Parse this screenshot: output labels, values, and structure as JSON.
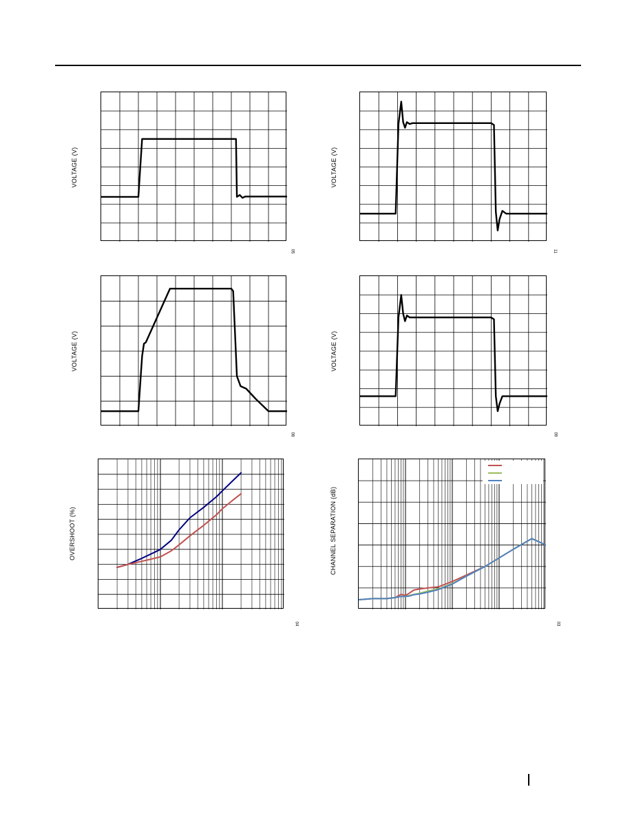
{
  "page": {
    "header_rule": true,
    "page_marker": true
  },
  "chart_data": [
    {
      "id": "top-left",
      "type": "line",
      "title": "",
      "xlabel": "",
      "ylabel": "VOLTAGE (V)",
      "figure_id": "05",
      "xlim": [
        0,
        10
      ],
      "ylim": [
        0,
        8
      ],
      "grid": true,
      "series": [
        {
          "color": "#000000",
          "x": [
            0,
            2.0,
            2.2,
            7.1,
            7.25,
            7.3,
            7.45,
            7.6,
            7.75,
            10
          ],
          "y": [
            2.4,
            2.4,
            5.5,
            5.5,
            5.5,
            2.4,
            2.5,
            2.35,
            2.42,
            2.42
          ]
        }
      ]
    },
    {
      "id": "top-right",
      "type": "line",
      "title": "",
      "xlabel": "",
      "ylabel": "VOLTAGE (V)",
      "figure_id": "11",
      "xlim": [
        0,
        10
      ],
      "ylim": [
        0,
        8
      ],
      "grid": true,
      "series": [
        {
          "color": "#000000",
          "x": [
            0,
            1.9,
            2.05,
            2.2,
            2.3,
            2.4,
            2.5,
            2.65,
            2.8,
            3.0,
            7.0,
            7.15,
            7.25,
            7.35,
            7.45,
            7.6,
            7.8,
            8.0,
            10
          ],
          "y": [
            1.5,
            1.5,
            6.3,
            7.5,
            6.4,
            6.1,
            6.4,
            6.3,
            6.35,
            6.35,
            6.35,
            6.25,
            1.6,
            0.6,
            1.2,
            1.65,
            1.5,
            1.5,
            1.5
          ]
        }
      ]
    },
    {
      "id": "mid-left",
      "type": "line",
      "title": "",
      "xlabel": "",
      "ylabel": "VOLTAGE (V)",
      "figure_id": "08",
      "xlim": [
        0,
        10
      ],
      "ylim": [
        0,
        6
      ],
      "grid": true,
      "series": [
        {
          "color": "#000000",
          "x": [
            0,
            2.0,
            2.2,
            2.3,
            2.4,
            3.7,
            7.0,
            7.1,
            7.3,
            7.5,
            7.8,
            8.3,
            9.0,
            10
          ],
          "y": [
            0.6,
            0.6,
            2.8,
            3.3,
            3.35,
            5.5,
            5.5,
            5.4,
            2.0,
            1.6,
            1.5,
            1.1,
            0.6,
            0.6
          ]
        }
      ]
    },
    {
      "id": "mid-right",
      "type": "line",
      "title": "",
      "xlabel": "",
      "ylabel": "VOLTAGE (V)",
      "figure_id": "09",
      "xlim": [
        0,
        10
      ],
      "ylim": [
        0,
        8
      ],
      "grid": true,
      "series": [
        {
          "color": "#000000",
          "x": [
            0,
            1.9,
            2.05,
            2.2,
            2.3,
            2.4,
            2.5,
            2.65,
            2.8,
            3.0,
            7.0,
            7.15,
            7.25,
            7.35,
            7.45,
            7.6,
            7.8,
            8.0,
            10
          ],
          "y": [
            1.6,
            1.6,
            5.8,
            7.0,
            6.0,
            5.6,
            5.9,
            5.8,
            5.8,
            5.8,
            5.8,
            5.7,
            1.6,
            0.8,
            1.2,
            1.6,
            1.6,
            1.6,
            1.6
          ]
        }
      ]
    },
    {
      "id": "bottom-left",
      "type": "line",
      "title": "",
      "xlabel": "",
      "ylabel": "OVERSHOOT (%)",
      "figure_id": "04",
      "xscale": "log",
      "xlim": [
        1,
        1000
      ],
      "ylim": [
        0,
        10
      ],
      "grid": true,
      "series": [
        {
          "color": "#000080",
          "x": [
            2,
            3,
            5,
            8,
            10,
            15,
            20,
            30,
            50,
            80,
            100,
            150,
            200
          ],
          "y": [
            2.8,
            3.0,
            3.4,
            3.8,
            4.0,
            4.6,
            5.3,
            6.1,
            6.8,
            7.5,
            7.9,
            8.6,
            9.1
          ]
        },
        {
          "color": "#C0504D",
          "x": [
            2,
            3,
            5,
            8,
            10,
            15,
            20,
            30,
            50,
            80,
            100,
            150,
            200
          ],
          "y": [
            2.8,
            3.0,
            3.2,
            3.4,
            3.5,
            3.9,
            4.3,
            4.9,
            5.6,
            6.3,
            6.7,
            7.3,
            7.7
          ]
        }
      ]
    },
    {
      "id": "bottom-right",
      "type": "line",
      "title": "",
      "xlabel": "",
      "ylabel": "CHANNEL SEPARATION (dB)",
      "figure_id": "03",
      "xscale": "log",
      "xlim": [
        10,
        100000
      ],
      "ylim": [
        0,
        7
      ],
      "grid": true,
      "legend": "top-right",
      "series": [
        {
          "color": "#C0504D",
          "x": [
            10,
            20,
            40,
            60,
            80,
            100,
            120,
            150,
            200,
            300,
            500,
            1000,
            2000,
            5000,
            10000,
            20000,
            50000,
            100000
          ],
          "y": [
            0.45,
            0.5,
            0.5,
            0.55,
            0.7,
            0.65,
            0.75,
            0.9,
            0.95,
            1.0,
            1.05,
            1.3,
            1.6,
            2.0,
            2.4,
            2.8,
            3.3,
            3.0
          ]
        },
        {
          "color": "#9BBB59",
          "x": [
            10,
            20,
            40,
            60,
            80,
            100,
            120,
            150,
            200,
            300,
            500,
            1000,
            2000,
            5000,
            10000,
            20000,
            50000,
            100000
          ],
          "y": [
            0.45,
            0.5,
            0.5,
            0.55,
            0.6,
            0.6,
            0.65,
            0.7,
            0.75,
            0.85,
            0.95,
            1.2,
            1.55,
            2.0,
            2.4,
            2.8,
            3.3,
            3.0
          ]
        },
        {
          "color": "#4F81BD",
          "x": [
            10,
            20,
            40,
            60,
            80,
            100,
            120,
            150,
            200,
            300,
            500,
            1000,
            2000,
            5000,
            10000,
            20000,
            50000,
            100000
          ],
          "y": [
            0.45,
            0.5,
            0.5,
            0.55,
            0.6,
            0.6,
            0.62,
            0.68,
            0.72,
            0.8,
            0.92,
            1.18,
            1.55,
            2.0,
            2.4,
            2.8,
            3.3,
            3.0
          ]
        }
      ]
    }
  ]
}
